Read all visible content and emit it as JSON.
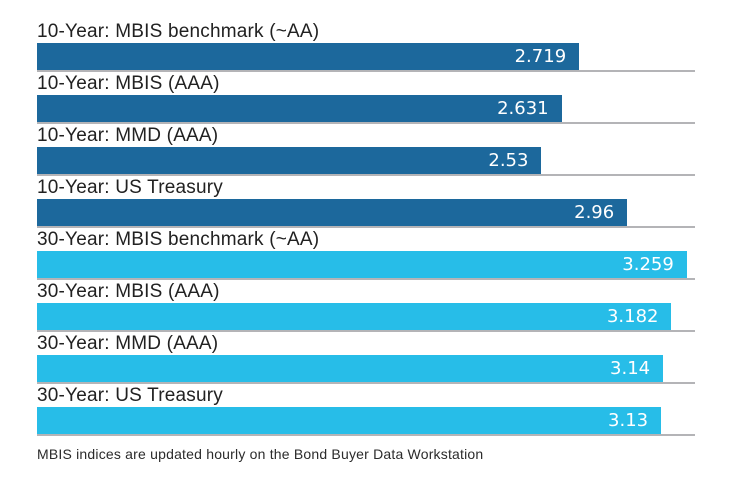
{
  "chart_data": {
    "type": "bar",
    "orientation": "horizontal",
    "title": "",
    "xlabel": "",
    "ylabel": "",
    "xlim": [
      0,
      3.3
    ],
    "grid": false,
    "legend": "none",
    "categories": [
      "10-Year: MBIS benchmark (~AA)",
      "10-Year: MBIS (AAA)",
      "10-Year: MMD (AAA)",
      "10-Year: US Treasury",
      "30-Year: MBIS benchmark (~AA)",
      "30-Year: MBIS (AAA)",
      "30-Year: MMD (AAA)",
      "30-Year: US Treasury"
    ],
    "values": [
      2.719,
      2.631,
      2.53,
      2.96,
      3.259,
      3.182,
      3.14,
      3.13
    ],
    "value_labels": [
      "2.719",
      "2.631",
      "2.53",
      "2.96",
      "3.259",
      "3.182",
      "3.14",
      "3.13"
    ],
    "bar_groups": [
      "10-year",
      "10-year",
      "10-year",
      "10-year",
      "30-year",
      "30-year",
      "30-year",
      "30-year"
    ],
    "group_colors": {
      "10-year": "#1c689c",
      "30-year": "#27bde8"
    },
    "value_label_color": "#ffffff",
    "baseline_color": "#b4b4b7",
    "label_color": "#212121"
  },
  "footer": {
    "note": "MBIS indices are updated hourly on the Bond Buyer Data Workstation"
  }
}
